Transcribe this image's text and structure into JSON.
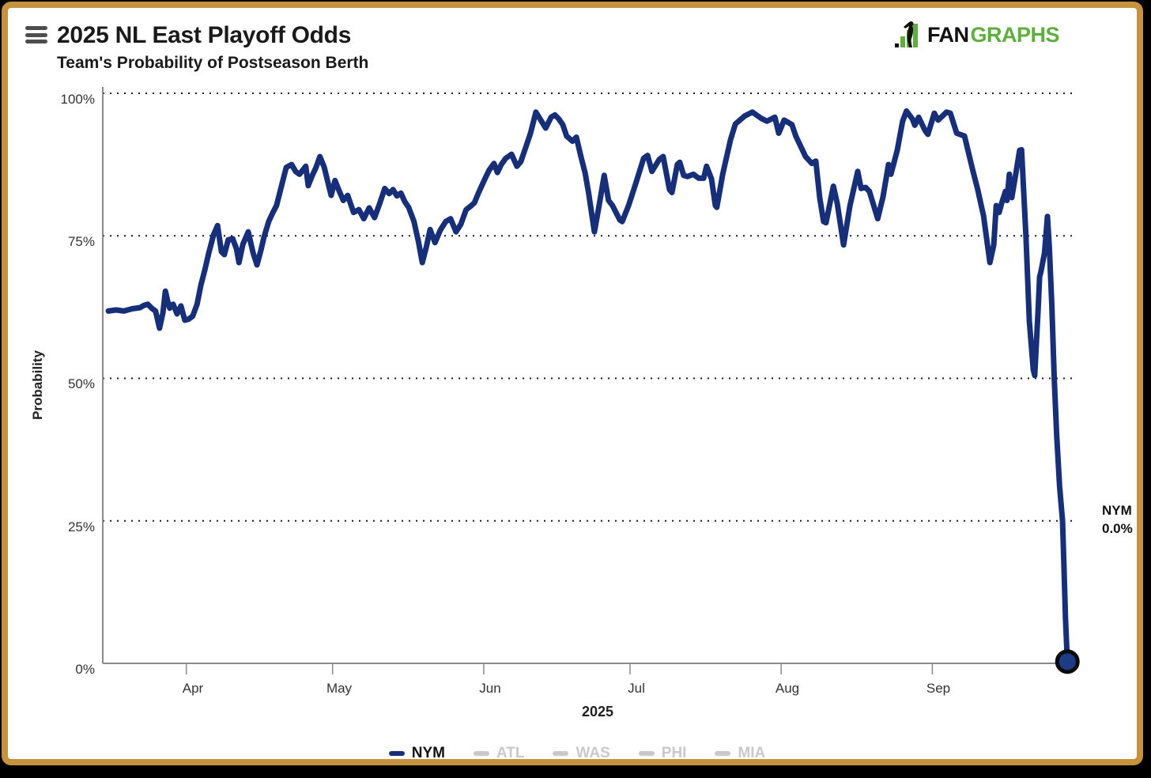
{
  "header": {
    "title": "2025 NL East Playoff Odds",
    "subtitle": "Team's Probability of Postseason Berth"
  },
  "brand": {
    "fan": "FAN",
    "graphs": "GRAPHS",
    "fan_color": "#111111",
    "graphs_color": "#5fae3e"
  },
  "frame_border_color": "#c5923e",
  "annotation": {
    "team": "NYM",
    "value": "0.0%"
  },
  "legend": {
    "items": [
      {
        "label": "NYM",
        "color": "#162f78",
        "text_color": "#111111",
        "active": true
      },
      {
        "label": "ATL",
        "color": "#c9c9c9",
        "text_color": "#c9c9c9",
        "active": false
      },
      {
        "label": "WAS",
        "color": "#c9c9c9",
        "text_color": "#c9c9c9",
        "active": false
      },
      {
        "label": "PHI",
        "color": "#c9c9c9",
        "text_color": "#c9c9c9",
        "active": false
      },
      {
        "label": "MIA",
        "color": "#c9c9c9",
        "text_color": "#c9c9c9",
        "active": false
      }
    ]
  },
  "chart_data": {
    "type": "line",
    "title": "2025 NL East Playoff Odds",
    "subtitle": "Team's Probability of Postseason Berth",
    "ylabel": "Probability",
    "xlabel": "2025",
    "ylim": [
      0,
      100
    ],
    "ytick_values": [
      100,
      75,
      50,
      25,
      0
    ],
    "ytick_labels": [
      "100%",
      "75%",
      "50%",
      "25%",
      "0%"
    ],
    "xtick_labels": [
      "Apr",
      "May",
      "Jun",
      "Jul",
      "Aug",
      "Sep"
    ],
    "xtick_days": [
      16,
      46,
      77,
      107,
      138,
      169
    ],
    "x_unit": "days since Mar 16, 2025",
    "x_range": [
      0,
      197
    ],
    "grid": "dotted horizontal gridlines",
    "legend_position": "bottom center",
    "inactive_series": [
      "ATL",
      "WAS",
      "PHI",
      "MIA"
    ],
    "series": [
      {
        "name": "NYM",
        "color": "#162f78",
        "end_label": {
          "team": "NYM",
          "value": "0.0%"
        },
        "points": [
          [
            0,
            61.8
          ],
          [
            1.6,
            62.0
          ],
          [
            3.2,
            61.8
          ],
          [
            4.9,
            62.2
          ],
          [
            6.5,
            62.4
          ],
          [
            7.3,
            62.8
          ],
          [
            8.1,
            63.0
          ],
          [
            8.9,
            62.3
          ],
          [
            9.7,
            61.8
          ],
          [
            10.5,
            58.8
          ],
          [
            11.2,
            61.5
          ],
          [
            11.7,
            65.3
          ],
          [
            12.2,
            63.5
          ],
          [
            12.6,
            62.3
          ],
          [
            13.3,
            63.0
          ],
          [
            14.1,
            61.3
          ],
          [
            14.9,
            62.7
          ],
          [
            15.7,
            60.2
          ],
          [
            16.5,
            60.4
          ],
          [
            17.3,
            60.9
          ],
          [
            18.2,
            63.0
          ],
          [
            19.0,
            66.4
          ],
          [
            19.8,
            69.0
          ],
          [
            20.6,
            72.0
          ],
          [
            21.6,
            75.2
          ],
          [
            22.4,
            76.8
          ],
          [
            23.2,
            72.2
          ],
          [
            23.8,
            71.7
          ],
          [
            24.6,
            74.3
          ],
          [
            25.5,
            74.5
          ],
          [
            26.3,
            72.7
          ],
          [
            26.8,
            70.3
          ],
          [
            27.6,
            73.5
          ],
          [
            28.7,
            75.7
          ],
          [
            29.7,
            72.0
          ],
          [
            30.5,
            69.9
          ],
          [
            31.3,
            72.5
          ],
          [
            31.9,
            74.7
          ],
          [
            32.9,
            77.5
          ],
          [
            33.7,
            79.0
          ],
          [
            34.5,
            80.3
          ],
          [
            35.3,
            83.0
          ],
          [
            36.5,
            87.0
          ],
          [
            37.6,
            87.5
          ],
          [
            38.4,
            86.3
          ],
          [
            39.2,
            85.8
          ],
          [
            40.5,
            87.2
          ],
          [
            41.0,
            83.8
          ],
          [
            41.8,
            85.5
          ],
          [
            42.6,
            87.0
          ],
          [
            43.4,
            88.9
          ],
          [
            44.3,
            87.0
          ],
          [
            44.9,
            84.9
          ],
          [
            45.7,
            82.1
          ],
          [
            46.5,
            84.7
          ],
          [
            47.3,
            83.0
          ],
          [
            48.2,
            81.2
          ],
          [
            49.1,
            82.1
          ],
          [
            50.3,
            79.1
          ],
          [
            51.4,
            79.6
          ],
          [
            52.4,
            78.0
          ],
          [
            53.5,
            79.9
          ],
          [
            54.6,
            78.2
          ],
          [
            55.6,
            80.5
          ],
          [
            56.7,
            83.3
          ],
          [
            57.6,
            82.4
          ],
          [
            58.4,
            83.1
          ],
          [
            59.2,
            82.0
          ],
          [
            60.0,
            82.5
          ],
          [
            60.8,
            81.0
          ],
          [
            61.6,
            80.0
          ],
          [
            62.7,
            77.5
          ],
          [
            63.6,
            74.0
          ],
          [
            64.4,
            70.3
          ],
          [
            65.2,
            73.0
          ],
          [
            66.0,
            76.1
          ],
          [
            67.0,
            73.8
          ],
          [
            68.1,
            76.0
          ],
          [
            69.2,
            77.5
          ],
          [
            70.2,
            78.0
          ],
          [
            71.3,
            75.7
          ],
          [
            72.3,
            77.0
          ],
          [
            73.4,
            79.6
          ],
          [
            74.3,
            80.2
          ],
          [
            75.1,
            80.8
          ],
          [
            75.9,
            82.5
          ],
          [
            76.7,
            84.0
          ],
          [
            77.3,
            85.1
          ],
          [
            78.1,
            86.5
          ],
          [
            79.1,
            87.7
          ],
          [
            79.8,
            86.1
          ],
          [
            80.6,
            87.5
          ],
          [
            81.5,
            88.6
          ],
          [
            82.7,
            89.3
          ],
          [
            83.8,
            87.2
          ],
          [
            84.6,
            88.0
          ],
          [
            85.6,
            90.5
          ],
          [
            86.6,
            93.0
          ],
          [
            87.7,
            96.7
          ],
          [
            88.7,
            95.3
          ],
          [
            89.7,
            93.9
          ],
          [
            90.8,
            95.8
          ],
          [
            91.6,
            96.2
          ],
          [
            92.4,
            95.5
          ],
          [
            93.2,
            94.5
          ],
          [
            94.0,
            92.5
          ],
          [
            95.2,
            91.6
          ],
          [
            96.0,
            92.3
          ],
          [
            96.9,
            89.0
          ],
          [
            97.8,
            86.0
          ],
          [
            98.5,
            82.6
          ],
          [
            99.7,
            75.7
          ],
          [
            100.7,
            80.5
          ],
          [
            101.7,
            85.6
          ],
          [
            102.6,
            81.2
          ],
          [
            103.4,
            80.3
          ],
          [
            104.9,
            77.8
          ],
          [
            105.4,
            77.5
          ],
          [
            106.7,
            80.3
          ],
          [
            108.1,
            84.0
          ],
          [
            109.8,
            88.6
          ],
          [
            110.6,
            89.1
          ],
          [
            111.5,
            86.3
          ],
          [
            113.0,
            88.4
          ],
          [
            113.8,
            88.9
          ],
          [
            115.1,
            83.1
          ],
          [
            115.6,
            82.6
          ],
          [
            116.7,
            87.5
          ],
          [
            117.2,
            87.9
          ],
          [
            118.0,
            85.6
          ],
          [
            118.8,
            85.4
          ],
          [
            120.0,
            85.8
          ],
          [
            121.1,
            85.1
          ],
          [
            122.1,
            85.1
          ],
          [
            122.7,
            87.2
          ],
          [
            123.7,
            85.0
          ],
          [
            124.5,
            80.3
          ],
          [
            124.8,
            80.0
          ],
          [
            126.0,
            85.8
          ],
          [
            127.6,
            91.8
          ],
          [
            128.6,
            94.6
          ],
          [
            130.5,
            96.0
          ],
          [
            132.1,
            96.7
          ],
          [
            133.9,
            95.6
          ],
          [
            135.1,
            95.1
          ],
          [
            136.7,
            95.8
          ],
          [
            137.5,
            93.0
          ],
          [
            138.6,
            95.3
          ],
          [
            140.2,
            94.5
          ],
          [
            141.0,
            92.5
          ],
          [
            143.0,
            88.9
          ],
          [
            144.3,
            87.7
          ],
          [
            145.1,
            88.1
          ],
          [
            145.9,
            81.7
          ],
          [
            146.7,
            77.5
          ],
          [
            147.2,
            77.3
          ],
          [
            148.7,
            83.7
          ],
          [
            149.5,
            80.7
          ],
          [
            150.8,
            73.4
          ],
          [
            152.1,
            80.3
          ],
          [
            153.7,
            86.3
          ],
          [
            154.4,
            83.3
          ],
          [
            155.3,
            83.5
          ],
          [
            156.1,
            82.8
          ],
          [
            157.8,
            78.0
          ],
          [
            158.9,
            81.9
          ],
          [
            160.0,
            87.5
          ],
          [
            160.5,
            85.8
          ],
          [
            161.8,
            90.0
          ],
          [
            162.9,
            95.1
          ],
          [
            163.7,
            96.9
          ],
          [
            164.9,
            95.5
          ],
          [
            165.4,
            94.4
          ],
          [
            166.2,
            95.8
          ],
          [
            167.5,
            93.5
          ],
          [
            168.1,
            92.8
          ],
          [
            169.4,
            96.5
          ],
          [
            170.2,
            95.3
          ],
          [
            171.9,
            96.7
          ],
          [
            172.7,
            96.5
          ],
          [
            174.0,
            93.0
          ],
          [
            175.6,
            92.5
          ],
          [
            177.2,
            86.8
          ],
          [
            178.3,
            83.1
          ],
          [
            179.5,
            78.5
          ],
          [
            180.0,
            75.4
          ],
          [
            180.8,
            70.3
          ],
          [
            181.6,
            73.4
          ],
          [
            182.1,
            80.3
          ],
          [
            182.7,
            79.1
          ],
          [
            183.2,
            80.7
          ],
          [
            184.0,
            82.8
          ],
          [
            184.3,
            81.2
          ],
          [
            184.8,
            85.8
          ],
          [
            185.3,
            81.7
          ],
          [
            186.1,
            85.8
          ],
          [
            186.9,
            90.0
          ],
          [
            187.3,
            90.1
          ],
          [
            188.2,
            75.0
          ],
          [
            188.9,
            60.0
          ],
          [
            189.7,
            51.5
          ],
          [
            190.0,
            50.5
          ],
          [
            190.7,
            62.0
          ],
          [
            191.0,
            67.8
          ],
          [
            191.3,
            68.8
          ],
          [
            192.0,
            72.0
          ],
          [
            192.6,
            78.4
          ],
          [
            193.0,
            73.0
          ],
          [
            193.5,
            63.0
          ],
          [
            194.0,
            50.0
          ],
          [
            194.5,
            40.0
          ],
          [
            195.1,
            31.0
          ],
          [
            195.7,
            25.0
          ],
          [
            196.0,
            17.0
          ],
          [
            196.3,
            8.0
          ],
          [
            196.7,
            0.3
          ]
        ]
      }
    ]
  }
}
